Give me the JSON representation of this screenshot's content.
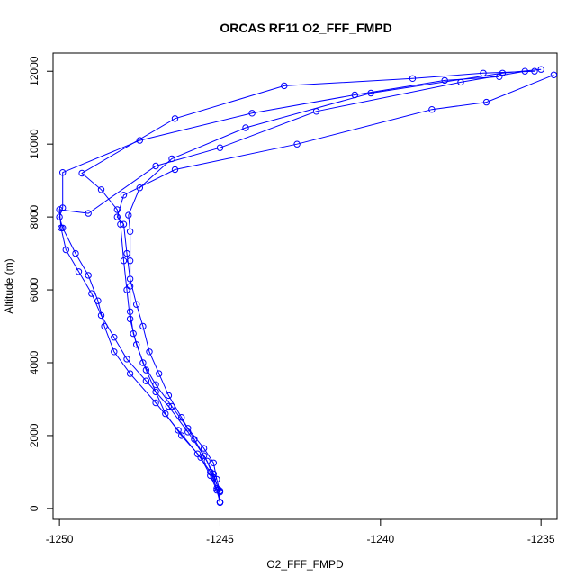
{
  "chart_data": {
    "type": "line",
    "title": "ORCAS RF11 O2_FFF_FMPD",
    "xlabel": "O2_FFF_FMPD",
    "ylabel": "Altitude (m)",
    "xlim": [
      -1250.2,
      -1234.5
    ],
    "ylim": [
      -300,
      12500
    ],
    "xticks": [
      -1250,
      -1245,
      -1240,
      -1235
    ],
    "yticks": [
      0,
      2000,
      4000,
      6000,
      8000,
      10000,
      12000
    ],
    "grid": false,
    "color": "#0000ff",
    "marker": "open-circle",
    "series": [
      {
        "points": [
          [
            -1245.0,
            170
          ],
          [
            -1245.0,
            450
          ],
          [
            -1245.1,
            800
          ],
          [
            -1245.2,
            1250
          ],
          [
            -1245.5,
            1650
          ],
          [
            -1246.0,
            2200
          ],
          [
            -1246.5,
            2800
          ],
          [
            -1247.0,
            3400
          ],
          [
            -1247.4,
            4000
          ],
          [
            -1247.7,
            4800
          ],
          [
            -1247.8,
            5400
          ],
          [
            -1247.8,
            6100
          ],
          [
            -1247.8,
            6800
          ],
          [
            -1247.8,
            7600
          ],
          [
            -1247.85,
            8050
          ],
          [
            -1247.5,
            8800
          ],
          [
            -1246.5,
            9600
          ],
          [
            -1244.2,
            10450
          ],
          [
            -1240.3,
            11400
          ],
          [
            -1236.2,
            11950
          ],
          [
            -1235.0,
            12050
          ]
        ]
      },
      {
        "points": [
          [
            -1245.0,
            170
          ],
          [
            -1245.1,
            500
          ],
          [
            -1245.3,
            900
          ],
          [
            -1245.6,
            1400
          ],
          [
            -1246.2,
            2000
          ],
          [
            -1246.7,
            2600
          ],
          [
            -1247.0,
            3200
          ],
          [
            -1247.3,
            3800
          ],
          [
            -1247.6,
            4500
          ],
          [
            -1247.8,
            5200
          ],
          [
            -1247.9,
            6000
          ],
          [
            -1248.0,
            6800
          ],
          [
            -1248.1,
            7800
          ],
          [
            -1248.2,
            8200
          ],
          [
            -1248.7,
            8750
          ],
          [
            -1249.3,
            9200
          ],
          [
            -1246.4,
            10700
          ],
          [
            -1243.0,
            11600
          ],
          [
            -1239.0,
            11800
          ],
          [
            -1236.8,
            11950
          ],
          [
            -1235.2,
            12000
          ]
        ]
      },
      {
        "points": [
          [
            -1245.0,
            170
          ],
          [
            -1245.1,
            550
          ],
          [
            -1245.3,
            1000
          ],
          [
            -1245.7,
            1500
          ],
          [
            -1246.3,
            2150
          ],
          [
            -1247.0,
            2900
          ],
          [
            -1247.8,
            3700
          ],
          [
            -1248.3,
            4300
          ],
          [
            -1248.6,
            5000
          ],
          [
            -1248.8,
            5700
          ],
          [
            -1249.1,
            6400
          ],
          [
            -1249.5,
            7000
          ],
          [
            -1249.9,
            7700
          ],
          [
            -1250.0,
            8000
          ],
          [
            -1249.9,
            8250
          ],
          [
            -1249.9,
            9220
          ],
          [
            -1247.5,
            10100
          ],
          [
            -1244.0,
            10850
          ],
          [
            -1240.8,
            11350
          ],
          [
            -1238.0,
            11750
          ],
          [
            -1236.3,
            11850
          ]
        ]
      },
      {
        "points": [
          [
            -1245.0,
            160
          ],
          [
            -1245.0,
            480
          ],
          [
            -1245.2,
            850
          ],
          [
            -1245.4,
            1300
          ],
          [
            -1245.8,
            1900
          ],
          [
            -1246.2,
            2500
          ],
          [
            -1246.6,
            3100
          ],
          [
            -1246.9,
            3700
          ],
          [
            -1247.2,
            4300
          ],
          [
            -1247.4,
            5000
          ],
          [
            -1247.6,
            5600
          ],
          [
            -1247.8,
            6300
          ],
          [
            -1247.9,
            7000
          ],
          [
            -1248.0,
            7800
          ],
          [
            -1248.2,
            8000
          ],
          [
            -1248.0,
            8600
          ],
          [
            -1246.4,
            9300
          ],
          [
            -1242.6,
            10000
          ],
          [
            -1238.4,
            10950
          ],
          [
            -1236.7,
            11150
          ],
          [
            -1234.6,
            11900
          ]
        ]
      },
      {
        "points": [
          [
            -1245.0,
            170
          ],
          [
            -1245.05,
            520
          ],
          [
            -1245.2,
            950
          ],
          [
            -1245.5,
            1450
          ],
          [
            -1246.0,
            2100
          ],
          [
            -1246.6,
            2800
          ],
          [
            -1247.3,
            3500
          ],
          [
            -1247.9,
            4100
          ],
          [
            -1248.3,
            4700
          ],
          [
            -1248.7,
            5300
          ],
          [
            -1249.0,
            5900
          ],
          [
            -1249.4,
            6500
          ],
          [
            -1249.8,
            7100
          ],
          [
            -1249.95,
            7700
          ],
          [
            -1250.0,
            8200
          ],
          [
            -1249.1,
            8100
          ],
          [
            -1247.0,
            9400
          ],
          [
            -1245.0,
            9900
          ],
          [
            -1242.0,
            10900
          ],
          [
            -1237.5,
            11700
          ],
          [
            -1235.5,
            12000
          ]
        ]
      }
    ]
  }
}
